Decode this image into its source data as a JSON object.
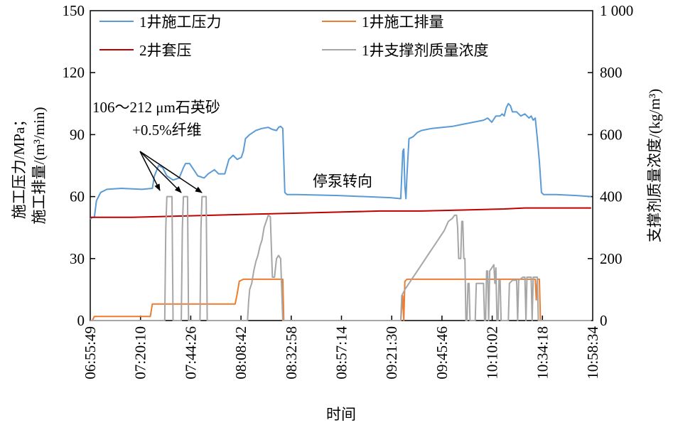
{
  "chart_data": {
    "type": "line",
    "xlabel": "时间",
    "ylabel_left_line1": "施工压力/MPa；",
    "ylabel_left_line2": "施工排量/(m³/min)",
    "ylabel_right": "支撑剂质量浓度/(kg/m³)",
    "x_ticks": [
      "06:55:49",
      "07:20:10",
      "07:44:26",
      "08:08:42",
      "08:32:58",
      "08:57:14",
      "09:21:30",
      "09:45:46",
      "10:10:02",
      "10:34:18",
      "10:58:34"
    ],
    "x_range_minutes": [
      0,
      242.75
    ],
    "left_axis": {
      "ylim": [
        0,
        150
      ],
      "ticks": [
        "0",
        "30",
        "60",
        "90",
        "120",
        "150"
      ]
    },
    "right_axis": {
      "ylim": [
        0,
        1000
      ],
      "ticks": [
        "0",
        "200",
        "400",
        "600",
        "800",
        "1 000"
      ]
    },
    "legend": [
      "1井施工压力",
      "1井施工排量",
      "2井套压",
      "1井支撑剂质量浓度"
    ],
    "annotations": {
      "sand": "106～212 μm石英砂",
      "fiber": "+0.5%纤维",
      "stop": "停泵转向"
    },
    "series": [
      {
        "name": "1井施工压力",
        "axis": "left",
        "color": "#5b9bd5",
        "points": [
          [
            0,
            49
          ],
          [
            1,
            50
          ],
          [
            2,
            50
          ],
          [
            3,
            58
          ],
          [
            5,
            62
          ],
          [
            8,
            63.5
          ],
          [
            15,
            64
          ],
          [
            25,
            63.5
          ],
          [
            30,
            64
          ],
          [
            31,
            70
          ],
          [
            33,
            75
          ],
          [
            35,
            74
          ],
          [
            37,
            70
          ],
          [
            40,
            68
          ],
          [
            43,
            69
          ],
          [
            45,
            74
          ],
          [
            46,
            76
          ],
          [
            48,
            76
          ],
          [
            50,
            73
          ],
          [
            52,
            70
          ],
          [
            55,
            69
          ],
          [
            57,
            71
          ],
          [
            60,
            73
          ],
          [
            62,
            71
          ],
          [
            65,
            71
          ],
          [
            67,
            78
          ],
          [
            69,
            80
          ],
          [
            71,
            78
          ],
          [
            73,
            79
          ],
          [
            74,
            82
          ],
          [
            75,
            88
          ],
          [
            77,
            90
          ],
          [
            80,
            92
          ],
          [
            83,
            93
          ],
          [
            86,
            93.5
          ],
          [
            88,
            92.5
          ],
          [
            90,
            92
          ],
          [
            91,
            93.5
          ],
          [
            92,
            94
          ],
          [
            93,
            93
          ],
          [
            94,
            62
          ],
          [
            95,
            61
          ],
          [
            100,
            61
          ],
          [
            120,
            60.5
          ],
          [
            145,
            59.5
          ],
          [
            150,
            59
          ],
          [
            151,
            82
          ],
          [
            151.5,
            83
          ],
          [
            152,
            65
          ],
          [
            152.5,
            59
          ],
          [
            153,
            70
          ],
          [
            154,
            88
          ],
          [
            156,
            89
          ],
          [
            158,
            91
          ],
          [
            160,
            92
          ],
          [
            165,
            93
          ],
          [
            170,
            93.5
          ],
          [
            175,
            94
          ],
          [
            180,
            95
          ],
          [
            185,
            96
          ],
          [
            190,
            97
          ],
          [
            192,
            98
          ],
          [
            194,
            96
          ],
          [
            196,
            99
          ],
          [
            198,
            99
          ],
          [
            199,
            100
          ],
          [
            200,
            99
          ],
          [
            201,
            103
          ],
          [
            202,
            105
          ],
          [
            203,
            104
          ],
          [
            204,
            101
          ],
          [
            206,
            101
          ],
          [
            208,
            99
          ],
          [
            210,
            100
          ],
          [
            212,
            98
          ],
          [
            213,
            99
          ],
          [
            214,
            97
          ],
          [
            215,
            98
          ],
          [
            216,
            88
          ],
          [
            217,
            77
          ],
          [
            218,
            62
          ],
          [
            219,
            61
          ],
          [
            225,
            61
          ],
          [
            235,
            60.5
          ],
          [
            242,
            60
          ]
        ]
      },
      {
        "name": "1井施工排量",
        "axis": "left",
        "color": "#ed7d31",
        "points": [
          [
            0,
            0
          ],
          [
            1,
            0
          ],
          [
            2,
            2
          ],
          [
            29,
            2
          ],
          [
            30,
            8
          ],
          [
            70,
            8
          ],
          [
            71,
            13
          ],
          [
            72,
            19
          ],
          [
            74,
            20
          ],
          [
            93,
            20
          ],
          [
            93.5,
            0
          ],
          [
            150,
            0
          ],
          [
            151,
            12
          ],
          [
            151.5,
            0
          ],
          [
            152,
            19
          ],
          [
            153,
            20
          ],
          [
            215,
            20
          ],
          [
            215.5,
            10
          ],
          [
            216,
            20
          ],
          [
            217,
            20
          ],
          [
            217.5,
            0
          ],
          [
            218,
            0
          ]
        ]
      },
      {
        "name": "2井套压",
        "axis": "left",
        "color": "#c00000",
        "points": [
          [
            0,
            50
          ],
          [
            20,
            50
          ],
          [
            40,
            50.5
          ],
          [
            60,
            51
          ],
          [
            80,
            51.5
          ],
          [
            100,
            52
          ],
          [
            120,
            52.5
          ],
          [
            140,
            53
          ],
          [
            160,
            53
          ],
          [
            180,
            53.5
          ],
          [
            200,
            54
          ],
          [
            210,
            54.5
          ],
          [
            242,
            54.5
          ]
        ]
      },
      {
        "name": "1井支撑剂质量浓度",
        "axis": "right",
        "color": "#a6a6a6",
        "points": [
          [
            0,
            0
          ],
          [
            36,
            0
          ],
          [
            36.5,
            300
          ],
          [
            37,
            400
          ],
          [
            39.5,
            400
          ],
          [
            40,
            0
          ],
          [
            44,
            0
          ],
          [
            44.5,
            300
          ],
          [
            45,
            400
          ],
          [
            47,
            400
          ],
          [
            47.5,
            0
          ],
          [
            53,
            0
          ],
          [
            53.5,
            300
          ],
          [
            54,
            400
          ],
          [
            56,
            400
          ],
          [
            56.5,
            0
          ],
          [
            76,
            0
          ],
          [
            76.5,
            60
          ],
          [
            77,
            100
          ],
          [
            78,
            120
          ],
          [
            79,
            160
          ],
          [
            80,
            190
          ],
          [
            81,
            210
          ],
          [
            82,
            240
          ],
          [
            83,
            260
          ],
          [
            84,
            300
          ],
          [
            85,
            320
          ],
          [
            86,
            340
          ],
          [
            87,
            335
          ],
          [
            88,
            140
          ],
          [
            89,
            140
          ],
          [
            90,
            200
          ],
          [
            91,
            210
          ],
          [
            92,
            200
          ],
          [
            93,
            0
          ],
          [
            150,
            0
          ],
          [
            150.5,
            80
          ],
          [
            152,
            100
          ],
          [
            154,
            120
          ],
          [
            155,
            130
          ],
          [
            157,
            150
          ],
          [
            159,
            170
          ],
          [
            161,
            190
          ],
          [
            163,
            210
          ],
          [
            165,
            230
          ],
          [
            167,
            250
          ],
          [
            169,
            270
          ],
          [
            171,
            290
          ],
          [
            173,
            320
          ],
          [
            175,
            330
          ],
          [
            176,
            340
          ],
          [
            177,
            340
          ],
          [
            177.5,
            300
          ],
          [
            178,
            200
          ],
          [
            179,
            200
          ],
          [
            179.5,
            320
          ],
          [
            180,
            320
          ],
          [
            180.5,
            200
          ],
          [
            181,
            200
          ],
          [
            181.5,
            0
          ],
          [
            182,
            0
          ],
          [
            182.5,
            120
          ],
          [
            183,
            120
          ],
          [
            183.5,
            0
          ],
          [
            186,
            0
          ],
          [
            186.5,
            120
          ],
          [
            190,
            120
          ],
          [
            190.5,
            0
          ],
          [
            191,
            0
          ],
          [
            191.5,
            160
          ],
          [
            192,
            160
          ],
          [
            192.5,
            0
          ],
          [
            193,
            160
          ],
          [
            194,
            170
          ],
          [
            195,
            180
          ],
          [
            195.5,
            120
          ],
          [
            196,
            170
          ],
          [
            196.5,
            0
          ],
          [
            197,
            0
          ],
          [
            197.5,
            130
          ],
          [
            198,
            130
          ],
          [
            198.5,
            0
          ],
          [
            202,
            0
          ],
          [
            202.5,
            120
          ],
          [
            204,
            130
          ],
          [
            206,
            130
          ],
          [
            206.5,
            0
          ],
          [
            207,
            130
          ],
          [
            209,
            140
          ],
          [
            210,
            140
          ],
          [
            210.5,
            0
          ],
          [
            211,
            140
          ],
          [
            213,
            140
          ],
          [
            213.5,
            0
          ],
          [
            214,
            140
          ],
          [
            216,
            140
          ],
          [
            216.5,
            0
          ],
          [
            242,
            0
          ]
        ]
      }
    ]
  }
}
